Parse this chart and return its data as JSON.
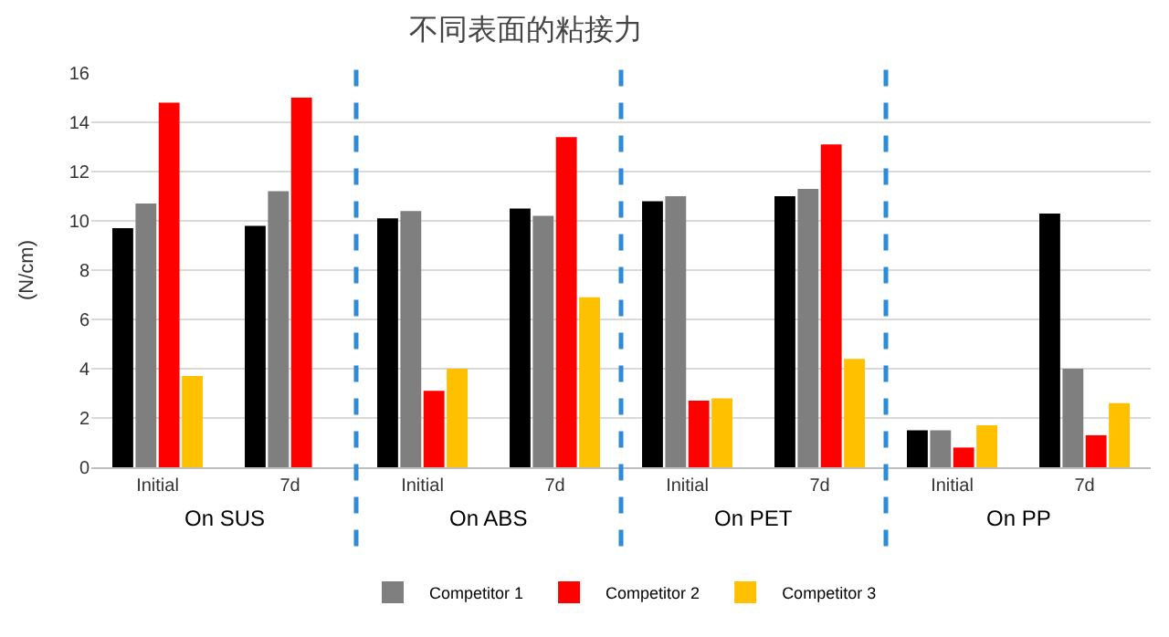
{
  "chart_data": {
    "type": "bar",
    "title": "不同表面的粘接力",
    "ylabel": "(N/cm)",
    "categories": [
      "Initial",
      "7d",
      "Initial",
      "7d",
      "Initial",
      "7d",
      "Initial",
      "7d"
    ],
    "series": [
      {
        "color": "#000000",
        "values": [
          9.7,
          9.8,
          10.1,
          10.5,
          10.8,
          11.0,
          1.5,
          10.3
        ]
      },
      {
        "name": "Competitor 1",
        "color": "#7f7f7f",
        "values": [
          10.7,
          11.2,
          10.4,
          10.2,
          11.0,
          11.3,
          1.5,
          4.0
        ]
      },
      {
        "name": "Competitor 2",
        "color": "#ff0000",
        "values": [
          14.8,
          15.0,
          3.1,
          13.4,
          2.7,
          13.1,
          0.8,
          1.3
        ]
      },
      {
        "name": "Competitor 3",
        "color": "#ffc000",
        "values": [
          3.7,
          null,
          4.0,
          6.9,
          2.8,
          4.4,
          1.7,
          2.6
        ]
      }
    ],
    "annotations": [
      "On SUS",
      "On ABS",
      "On PET",
      "On PP"
    ],
    "ylim": [
      0,
      16
    ],
    "yticks": [
      0,
      2,
      4,
      6,
      8,
      10,
      12,
      14,
      16
    ],
    "grid": "y",
    "legend": "bottom"
  }
}
